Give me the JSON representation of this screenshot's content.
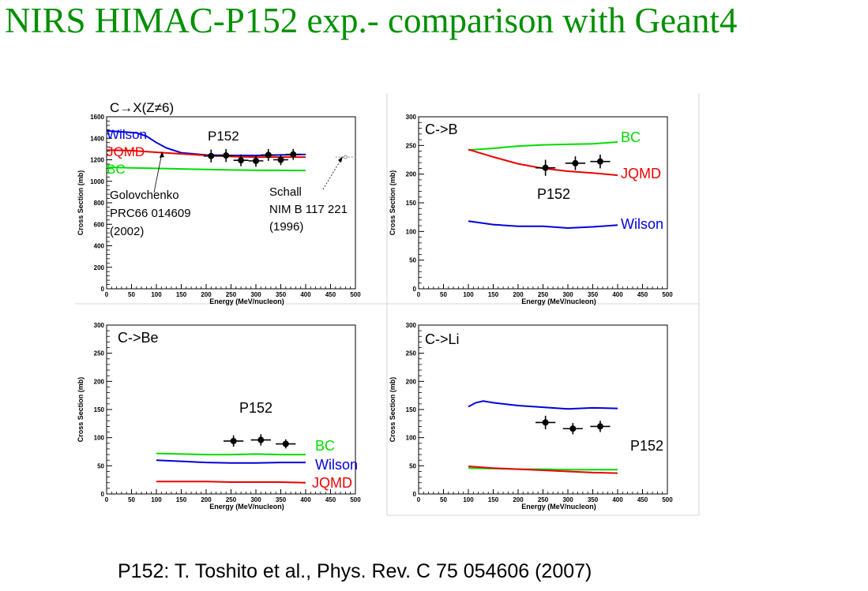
{
  "slide": {
    "title": "NIRS HIMAC-P152 exp.- comparison with Geant4",
    "reference": "P152: T. Toshito et al., Phys. Rev. C 75 054606 (2007)"
  },
  "colors": {
    "title": "#009000",
    "Wilson": "#0000dd",
    "JQMD": "#ee0000",
    "BC": "#00dd00",
    "data": "#000000"
  },
  "chart_data": [
    {
      "type": "line",
      "title": "C→X(Z≠6)",
      "xlabel": "Energy (MeV/nucleon)",
      "ylabel": "Cross Section (mb)",
      "xlim": [
        0,
        500
      ],
      "ylim": [
        0,
        1600
      ],
      "xticks": [
        0,
        50,
        100,
        150,
        200,
        250,
        300,
        350,
        400,
        450,
        500
      ],
      "yticks": [
        0,
        200,
        400,
        600,
        800,
        1000,
        1200,
        1400,
        1600
      ],
      "series": [
        {
          "name": "Wilson",
          "x": [
            0,
            60,
            80,
            100,
            120,
            150,
            200,
            250,
            300,
            350,
            400
          ],
          "y": [
            1470,
            1450,
            1420,
            1360,
            1310,
            1265,
            1245,
            1240,
            1240,
            1245,
            1250
          ]
        },
        {
          "name": "JQMD",
          "x": [
            0,
            50,
            100,
            150,
            200,
            250,
            300,
            350,
            400
          ],
          "y": [
            1290,
            1285,
            1270,
            1255,
            1240,
            1230,
            1225,
            1225,
            1225
          ]
        },
        {
          "name": "BC",
          "x": [
            0,
            50,
            100,
            150,
            200,
            250,
            300,
            350,
            400
          ],
          "y": [
            1130,
            1125,
            1120,
            1115,
            1110,
            1105,
            1103,
            1102,
            1100
          ]
        }
      ],
      "measurements": [
        {
          "name": "P152",
          "points": [
            {
              "x": 210,
              "y": 1235,
              "xerr": 15,
              "yerr": 60
            },
            {
              "x": 240,
              "y": 1240,
              "xerr": 15,
              "yerr": 60
            },
            {
              "x": 270,
              "y": 1195,
              "xerr": 15,
              "yerr": 55
            },
            {
              "x": 300,
              "y": 1190,
              "xerr": 15,
              "yerr": 55
            },
            {
              "x": 325,
              "y": 1245,
              "xerr": 15,
              "yerr": 55
            },
            {
              "x": 350,
              "y": 1200,
              "xerr": 15,
              "yerr": 50
            },
            {
              "x": 375,
              "y": 1250,
              "xerr": 15,
              "yerr": 50
            }
          ]
        },
        {
          "name": "Schall",
          "points": [
            {
              "x": 480,
              "y": 1225,
              "xerr": 20,
              "yerr": 15
            }
          ]
        }
      ],
      "annotations": [
        {
          "text": "Wilson",
          "color": "#0000dd"
        },
        {
          "text": "JQMD",
          "color": "#ee0000"
        },
        {
          "text": "BC",
          "color": "#00dd00"
        },
        {
          "text": "P152",
          "color": "#000000"
        },
        {
          "text": "Golovchenko",
          "color": "#000000"
        },
        {
          "text": "PRC66 014609",
          "color": "#000000"
        },
        {
          "text": "(2002)",
          "color": "#000000"
        },
        {
          "text": "Schall",
          "color": "#000000"
        },
        {
          "text": "NIM B 117 221",
          "color": "#000000"
        },
        {
          "text": "(1996)",
          "color": "#000000"
        }
      ]
    },
    {
      "type": "line",
      "title": "C->B",
      "xlabel": "Energy (MeV/nucleon)",
      "ylabel": "Cross Section (mb)",
      "xlim": [
        0,
        500
      ],
      "ylim": [
        0,
        300
      ],
      "xticks": [
        0,
        50,
        100,
        150,
        200,
        250,
        300,
        350,
        400,
        450,
        500
      ],
      "yticks": [
        0,
        50,
        100,
        150,
        200,
        250,
        300
      ],
      "series": [
        {
          "name": "BC",
          "x": [
            100,
            150,
            200,
            250,
            300,
            350,
            400
          ],
          "y": [
            242,
            245,
            249,
            251,
            252,
            253,
            256
          ]
        },
        {
          "name": "JQMD",
          "x": [
            100,
            150,
            200,
            250,
            300,
            350,
            400
          ],
          "y": [
            243,
            230,
            218,
            210,
            205,
            202,
            198
          ]
        },
        {
          "name": "Wilson",
          "x": [
            100,
            150,
            200,
            250,
            300,
            350,
            400
          ],
          "y": [
            118,
            112,
            109,
            109,
            106,
            108,
            111
          ]
        }
      ],
      "measurements": [
        {
          "name": "P152",
          "points": [
            {
              "x": 255,
              "y": 211,
              "xerr": 20,
              "yerr": 14
            },
            {
              "x": 315,
              "y": 219,
              "xerr": 20,
              "yerr": 12
            },
            {
              "x": 365,
              "y": 222,
              "xerr": 20,
              "yerr": 12
            }
          ]
        }
      ],
      "annotations": [
        {
          "text": "C->B",
          "color": "#000000"
        },
        {
          "text": "BC",
          "color": "#00dd00"
        },
        {
          "text": "JQMD",
          "color": "#ee0000"
        },
        {
          "text": "P152",
          "color": "#000000"
        },
        {
          "text": "Wilson",
          "color": "#0000dd"
        }
      ]
    },
    {
      "type": "line",
      "title": "C->Be",
      "xlabel": "Energy (MeV/nucleon)",
      "ylabel": "Cross Section (mb)",
      "xlim": [
        0,
        500
      ],
      "ylim": [
        0,
        300
      ],
      "xticks": [
        0,
        50,
        100,
        150,
        200,
        250,
        300,
        350,
        400,
        450,
        500
      ],
      "yticks": [
        0,
        50,
        100,
        150,
        200,
        250,
        300
      ],
      "series": [
        {
          "name": "BC",
          "x": [
            100,
            150,
            200,
            250,
            300,
            350,
            400
          ],
          "y": [
            72,
            71,
            70,
            70,
            71,
            70,
            70
          ]
        },
        {
          "name": "Wilson",
          "x": [
            100,
            150,
            200,
            250,
            300,
            350,
            400
          ],
          "y": [
            60,
            58,
            56,
            55,
            55,
            56,
            56
          ]
        },
        {
          "name": "JQMD",
          "x": [
            100,
            150,
            200,
            250,
            300,
            350,
            400
          ],
          "y": [
            22,
            22,
            22,
            21,
            21,
            21,
            20
          ]
        }
      ],
      "measurements": [
        {
          "name": "P152",
          "points": [
            {
              "x": 255,
              "y": 94,
              "xerr": 20,
              "yerr": 10
            },
            {
              "x": 310,
              "y": 96,
              "xerr": 20,
              "yerr": 10
            },
            {
              "x": 360,
              "y": 89,
              "xerr": 20,
              "yerr": 8
            }
          ]
        }
      ],
      "annotations": [
        {
          "text": "C->Be",
          "color": "#000000"
        },
        {
          "text": "P152",
          "color": "#000000"
        },
        {
          "text": "BC",
          "color": "#00dd00"
        },
        {
          "text": "Wilson",
          "color": "#0000dd"
        },
        {
          "text": "JQMD",
          "color": "#ee0000"
        }
      ]
    },
    {
      "type": "line",
      "title": "C->Li",
      "xlabel": "Energy (MeV/nucleon)",
      "ylabel": "Cross Section (mb)",
      "xlim": [
        0,
        500
      ],
      "ylim": [
        0,
        300
      ],
      "xticks": [
        0,
        50,
        100,
        150,
        200,
        250,
        300,
        350,
        400,
        450,
        500
      ],
      "yticks": [
        0,
        50,
        100,
        150,
        200,
        250,
        300
      ],
      "series": [
        {
          "name": "Wilson",
          "x": [
            100,
            115,
            130,
            150,
            200,
            250,
            300,
            350,
            400
          ],
          "y": [
            155,
            162,
            165,
            162,
            157,
            154,
            151,
            153,
            152
          ]
        },
        {
          "name": "BC",
          "x": [
            100,
            150,
            200,
            250,
            300,
            350,
            400
          ],
          "y": [
            46,
            45,
            44,
            44,
            43,
            43,
            43
          ]
        },
        {
          "name": "JQMD",
          "x": [
            100,
            150,
            200,
            250,
            300,
            350,
            400
          ],
          "y": [
            49,
            46,
            44,
            42,
            40,
            38,
            37
          ]
        }
      ],
      "measurements": [
        {
          "name": "P152",
          "points": [
            {
              "x": 255,
              "y": 127,
              "xerr": 20,
              "yerr": 12
            },
            {
              "x": 310,
              "y": 116,
              "xerr": 20,
              "yerr": 10
            },
            {
              "x": 365,
              "y": 120,
              "xerr": 20,
              "yerr": 10
            }
          ]
        }
      ],
      "annotations": [
        {
          "text": "C->Li",
          "color": "#000000"
        },
        {
          "text": "Wilson",
          "color": "#0000dd"
        },
        {
          "text": "P152",
          "color": "#000000"
        },
        {
          "text": "BC",
          "color": "#00dd00"
        },
        {
          "text": "JQMD",
          "color": "#ee0000"
        }
      ]
    }
  ]
}
